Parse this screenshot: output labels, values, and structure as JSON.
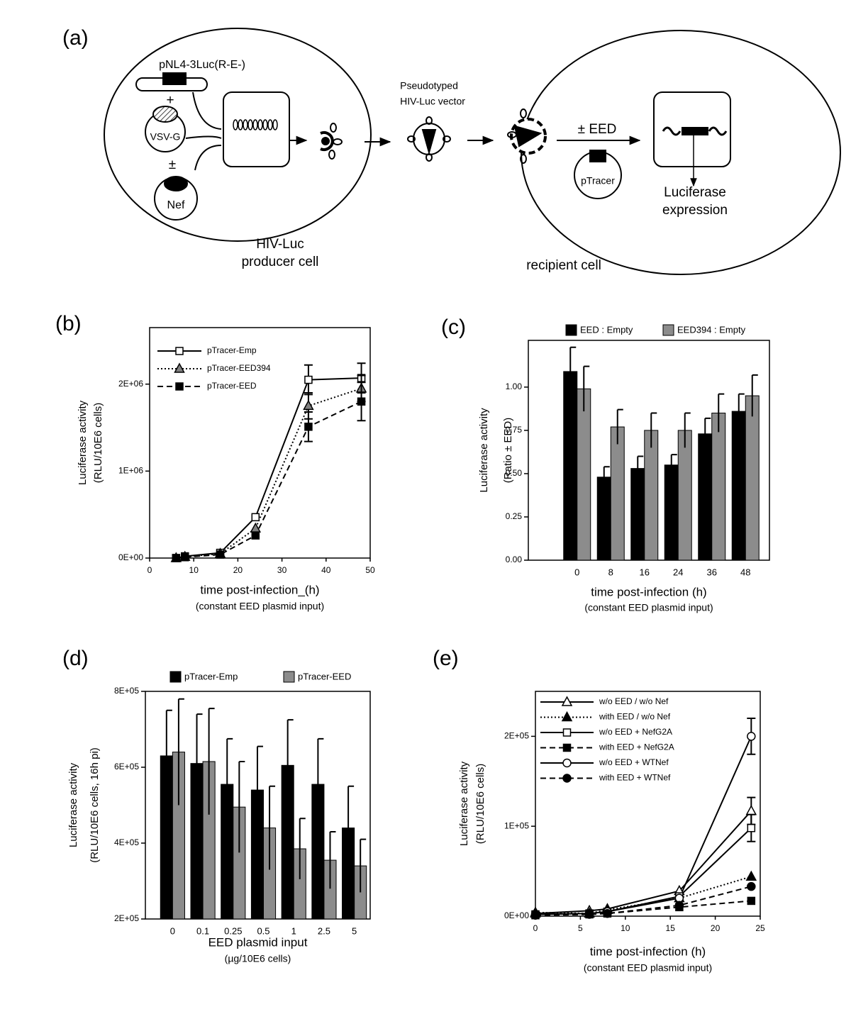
{
  "diagram": {
    "label": "(a)",
    "plasmid": "pNL4-3Luc(R-E-)",
    "plus": "+",
    "envelope": "VSV-G",
    "plusminus": "±",
    "accessory": "Nef",
    "producer": [
      "HIV-Luc",
      "producer cell"
    ],
    "vector": [
      "Pseudotyped",
      "HIV-Luc vector"
    ],
    "treatment": "± EED",
    "tracer": "pTracer",
    "readout": [
      "Luciferase",
      "expression"
    ],
    "recipient": "recipient cell"
  },
  "chart_data": [
    {
      "type": "line",
      "panel": "(b)",
      "x": [
        6,
        8,
        16,
        24,
        36,
        48
      ],
      "xlim": [
        0,
        50
      ],
      "xticks": [
        0,
        10,
        20,
        30,
        40,
        50
      ],
      "ylim": [
        0,
        2650000
      ],
      "yticks": [
        {
          "value": 0,
          "label": "0E+00"
        },
        {
          "value": 1000000,
          "label": "1E+06"
        },
        {
          "value": 2000000,
          "label": "2E+06"
        }
      ],
      "xlabel": [
        "time post-infection_(h)",
        "(constant EED plasmid input)"
      ],
      "ylabel": [
        "Luciferase activity",
        "(RLU/10E6 cells)"
      ],
      "legend": "top-left",
      "series": [
        {
          "name": "pTracer-Emp",
          "color": "#000000",
          "fill": "#ffffff",
          "marker": "square",
          "dash": "solid",
          "values": [
            0,
            20000,
            60000,
            470000,
            2050000,
            2070000
          ],
          "errors": [
            null,
            null,
            null,
            null,
            170000,
            170000
          ]
        },
        {
          "name": "pTracer-EED394",
          "color": "#000000",
          "fill": "#808080",
          "marker": "triangle",
          "dash": "dotted",
          "values": [
            0,
            15000,
            50000,
            340000,
            1750000,
            1950000
          ],
          "errors": [
            null,
            null,
            null,
            null,
            150000,
            150000
          ]
        },
        {
          "name": "pTracer-EED",
          "color": "#000000",
          "fill": "#000000",
          "marker": "square",
          "dash": "dashed",
          "values": [
            0,
            10000,
            40000,
            260000,
            1510000,
            1800000
          ],
          "errors": [
            null,
            null,
            null,
            null,
            170000,
            220000
          ]
        }
      ]
    },
    {
      "type": "bar",
      "panel": "(c)",
      "categories": [
        "0",
        "8",
        "16",
        "24",
        "36",
        "48"
      ],
      "ylim": [
        0,
        1.27
      ],
      "yticks": [
        {
          "value": 0,
          "label": "0.00"
        },
        {
          "value": 0.25,
          "label": "0.25"
        },
        {
          "value": 0.5,
          "label": "0.50"
        },
        {
          "value": 0.75,
          "label": "0.75"
        },
        {
          "value": 1,
          "label": "1.00"
        }
      ],
      "xlabel": [
        "time post-infection (h)",
        "(constant EED plasmid input)"
      ],
      "ylabel": [
        "Luciferase activity",
        "(Ratio ± EED)"
      ],
      "legend": "top",
      "series": [
        {
          "name": "EED : Empty",
          "color": "#000000",
          "values": [
            1.09,
            0.48,
            0.53,
            0.55,
            0.73,
            0.86
          ],
          "errors": [
            0.14,
            0.06,
            0.07,
            0.06,
            0.09,
            0.1
          ]
        },
        {
          "name": "EED394 : Empty",
          "color": "#8c8c8c",
          "values": [
            0.99,
            0.77,
            0.75,
            0.75,
            0.85,
            0.95
          ],
          "errors": [
            0.13,
            0.1,
            0.1,
            0.1,
            0.11,
            0.12
          ]
        }
      ]
    },
    {
      "type": "bar",
      "panel": "(d)",
      "categories": [
        "0",
        "0.1",
        "0.25",
        "0.5",
        "1",
        "2.5",
        "5"
      ],
      "ylim": [
        200000,
        800000
      ],
      "yticks": [
        {
          "value": 200000,
          "label": "2E+05"
        },
        {
          "value": 400000,
          "label": "4E+05"
        },
        {
          "value": 600000,
          "label": "6E+05"
        },
        {
          "value": 800000,
          "label": "8E+05"
        }
      ],
      "xlabel": [
        "EED plasmid input",
        "(µg/10E6 cells)"
      ],
      "ylabel": [
        "Luciferase activity",
        "(RLU/10E6 cells, 16h pi)"
      ],
      "legend": "top",
      "series": [
        {
          "name": "pTracer-Emp",
          "color": "#000000",
          "values": [
            630000,
            610000,
            555000,
            540000,
            605000,
            555000,
            440000
          ],
          "errors": [
            120000,
            130000,
            120000,
            115000,
            120000,
            120000,
            110000
          ]
        },
        {
          "name": "pTracer-EED",
          "color": "#8c8c8c",
          "values": [
            640000,
            615000,
            495000,
            440000,
            385000,
            355000,
            340000
          ],
          "errors": [
            140000,
            140000,
            120000,
            110000,
            80000,
            75000,
            70000
          ]
        }
      ]
    },
    {
      "type": "line",
      "panel": "(e)",
      "x": [
        0,
        6,
        8,
        16,
        24
      ],
      "xlim": [
        0,
        25
      ],
      "xticks": [
        0,
        5,
        10,
        15,
        20,
        25
      ],
      "ylim": [
        0,
        250000
      ],
      "yticks": [
        {
          "value": 0,
          "label": "0E+00"
        },
        {
          "value": 100000,
          "label": "1E+05"
        },
        {
          "value": 200000,
          "label": "2E+05"
        }
      ],
      "xlabel": [
        "time post-infection (h)",
        "(constant EED plasmid input)"
      ],
      "ylabel": [
        "Luciferase activity",
        "(RLU/10E6 cells)"
      ],
      "legend": "top-left",
      "series": [
        {
          "name": "w/o EED / w/o Nef",
          "color": "#000000",
          "fill": "#ffffff",
          "marker": "triangle",
          "dash": "solid",
          "values": [
            3000,
            6000,
            8000,
            28000,
            117000
          ],
          "errors": [
            null,
            null,
            null,
            null,
            15000
          ]
        },
        {
          "name": "with EED / w/o Nef",
          "color": "#000000",
          "fill": "#000000",
          "marker": "triangle",
          "dash": "dotted",
          "values": [
            4000,
            3000,
            7000,
            20000,
            44000
          ],
          "errors": [
            null,
            null,
            null,
            null,
            null
          ]
        },
        {
          "name": "w/o EED + NefG2A",
          "color": "#000000",
          "fill": "#ffffff",
          "marker": "square",
          "dash": "solid",
          "values": [
            2000,
            3000,
            5000,
            22000,
            98000
          ],
          "errors": [
            null,
            null,
            null,
            null,
            15000
          ]
        },
        {
          "name": "with EED + NefG2A",
          "color": "#000000",
          "fill": "#000000",
          "marker": "square",
          "dash": "dashed",
          "values": [
            1000,
            2000,
            3000,
            10000,
            17000
          ],
          "errors": [
            null,
            null,
            null,
            null,
            null
          ]
        },
        {
          "name": "w/o EED + WTNef",
          "color": "#000000",
          "fill": "#ffffff",
          "marker": "circle",
          "dash": "solid",
          "values": [
            2000,
            3000,
            5000,
            20000,
            200000
          ],
          "errors": [
            null,
            null,
            null,
            null,
            20000
          ]
        },
        {
          "name": "with EED + WTNef",
          "color": "#000000",
          "fill": "#000000",
          "marker": "circle",
          "dash": "dashed",
          "values": [
            1000,
            2000,
            3000,
            12000,
            33000
          ],
          "errors": [
            null,
            null,
            null,
            null,
            null
          ]
        }
      ]
    }
  ]
}
